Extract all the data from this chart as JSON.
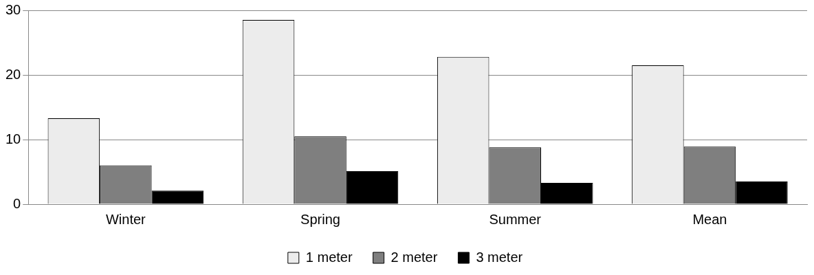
{
  "chart_data": {
    "type": "bar",
    "categories": [
      "Winter",
      "Spring",
      "Summer",
      "Mean"
    ],
    "series": [
      {
        "name": "1 meter",
        "color": "#ececec",
        "values": [
          13.3,
          28.5,
          22.8,
          21.5
        ]
      },
      {
        "name": "2 meter",
        "color": "#7f7f7f",
        "values": [
          6.0,
          10.5,
          8.8,
          8.9
        ]
      },
      {
        "name": "3 meter",
        "color": "#000000",
        "values": [
          2.1,
          5.1,
          3.3,
          3.5
        ]
      }
    ],
    "ylim": [
      0,
      30
    ],
    "yticks": [
      0,
      10,
      20,
      30
    ],
    "grid": "y",
    "legend": "bottom"
  }
}
